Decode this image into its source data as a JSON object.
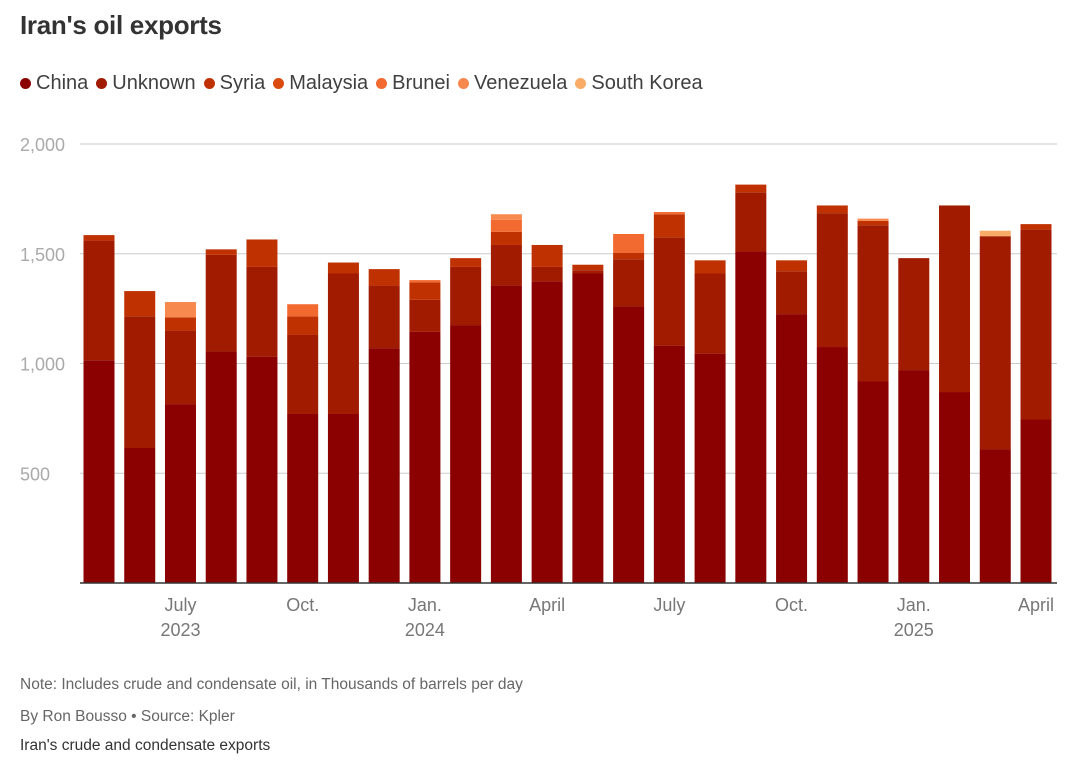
{
  "title": "Iran's oil exports",
  "footer": {
    "note": "Note: Includes crude and condensate oil, in Thousands of barrels per day",
    "byline": "By Ron Bousso • Source: Kpler",
    "caption": "Iran's crude and condensate exports"
  },
  "chart_data": {
    "type": "bar",
    "stacked": true,
    "grid": true,
    "legend_position": "top",
    "ylim": [
      0,
      2000
    ],
    "yticks": [
      500,
      1000,
      1500,
      2000
    ],
    "ytick_labels": [
      "500",
      "1,000",
      "1,500",
      "2,000"
    ],
    "categories": [
      "2023-05",
      "2023-06",
      "2023-07",
      "2023-08",
      "2023-09",
      "2023-10",
      "2023-11",
      "2023-12",
      "2024-01",
      "2024-02",
      "2024-03",
      "2024-04",
      "2024-05",
      "2024-06",
      "2024-07",
      "2024-08",
      "2024-09",
      "2024-10",
      "2024-11",
      "2024-12",
      "2025-01",
      "2025-02",
      "2025-03",
      "2025-04"
    ],
    "xtick_labels": [
      {
        "index": 2,
        "line1": "July",
        "line2": "2023"
      },
      {
        "index": 5,
        "line1": "Oct.",
        "line2": ""
      },
      {
        "index": 8,
        "line1": "Jan.",
        "line2": "2024"
      },
      {
        "index": 11,
        "line1": "April",
        "line2": ""
      },
      {
        "index": 14,
        "line1": "July",
        "line2": ""
      },
      {
        "index": 17,
        "line1": "Oct.",
        "line2": ""
      },
      {
        "index": 20,
        "line1": "Jan.",
        "line2": "2025"
      },
      {
        "index": 23,
        "line1": "April",
        "line2": ""
      }
    ],
    "series": [
      {
        "name": "China",
        "color": "#8b0000",
        "values": [
          1015,
          615,
          815,
          1055,
          1030,
          770,
          770,
          1070,
          1145,
          1175,
          1355,
          1375,
          1410,
          1260,
          1080,
          1045,
          1510,
          1225,
          1075,
          920,
          970,
          870,
          610,
          745
        ]
      },
      {
        "name": "Unknown",
        "color": "#a01b00",
        "values": [
          545,
          600,
          335,
          440,
          410,
          360,
          640,
          285,
          145,
          265,
          185,
          65,
          15,
          215,
          495,
          365,
          270,
          195,
          610,
          710,
          510,
          850,
          970,
          865
        ]
      },
      {
        "name": "Syria",
        "color": "#bf3100",
        "values": [
          25,
          115,
          60,
          25,
          125,
          85,
          50,
          75,
          80,
          40,
          60,
          100,
          25,
          30,
          105,
          60,
          35,
          50,
          35,
          20,
          0,
          0,
          0,
          25
        ]
      },
      {
        "name": "Malaysia",
        "color": "#db4b10",
        "values": [
          0,
          0,
          0,
          0,
          0,
          0,
          0,
          0,
          0,
          0,
          0,
          0,
          0,
          0,
          0,
          0,
          0,
          0,
          0,
          0,
          0,
          0,
          0,
          0
        ]
      },
      {
        "name": "Brunei",
        "color": "#f26a30",
        "values": [
          0,
          0,
          0,
          0,
          0,
          55,
          0,
          0,
          10,
          0,
          55,
          0,
          0,
          85,
          10,
          0,
          0,
          0,
          0,
          0,
          0,
          0,
          0,
          0
        ]
      },
      {
        "name": "Venezuela",
        "color": "#f7894f",
        "values": [
          0,
          0,
          70,
          0,
          0,
          0,
          0,
          0,
          0,
          0,
          25,
          0,
          0,
          0,
          0,
          0,
          0,
          0,
          0,
          10,
          0,
          0,
          0,
          0
        ]
      },
      {
        "name": "South Korea",
        "color": "#f9ac68",
        "values": [
          0,
          0,
          0,
          0,
          0,
          0,
          0,
          0,
          0,
          0,
          0,
          0,
          0,
          0,
          0,
          0,
          0,
          0,
          0,
          0,
          0,
          0,
          25,
          0
        ]
      }
    ]
  }
}
